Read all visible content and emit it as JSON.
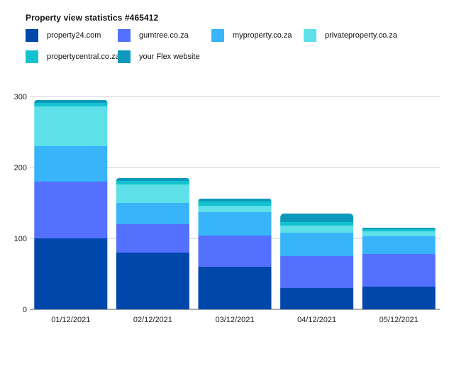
{
  "chart_data": {
    "type": "bar",
    "stacked": true,
    "title": "Property view statistics #465412",
    "categories": [
      "01/12/2021",
      "02/12/2021",
      "03/12/2021",
      "04/12/2021",
      "05/12/2021"
    ],
    "series": [
      {
        "name": "property24.com",
        "color": "#0047ab",
        "values": [
          100,
          80,
          60,
          30,
          32
        ]
      },
      {
        "name": "gumtree.co.za",
        "color": "#5470ff",
        "values": [
          80,
          40,
          44,
          45,
          46
        ]
      },
      {
        "name": "myproperty.co.za",
        "color": "#38b4fb",
        "values": [
          50,
          30,
          33,
          33,
          25
        ]
      },
      {
        "name": "privateproperty.co.za",
        "color": "#5ee0e8",
        "values": [
          56,
          26,
          9,
          10,
          7
        ]
      },
      {
        "name": "propertycentral.co.za",
        "color": "#13c2cf",
        "values": [
          5,
          5,
          6,
          5,
          3
        ]
      },
      {
        "name": "your Flex website",
        "color": "#0e99bc",
        "values": [
          4,
          4,
          4,
          12,
          2
        ]
      }
    ],
    "yticks": [
      0,
      100,
      200,
      300
    ],
    "ylim": [
      0,
      300
    ],
    "grid": true,
    "legend_position": "top-left"
  }
}
